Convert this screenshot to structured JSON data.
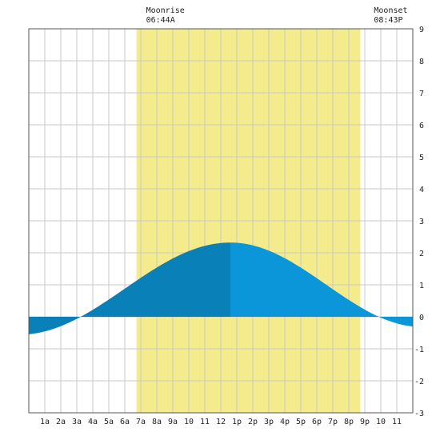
{
  "chart_data": {
    "type": "area",
    "title": "",
    "xlabel": "",
    "ylabel": "",
    "x_range_hours": [
      0,
      24
    ],
    "ylim": [
      -3,
      9
    ],
    "y_ticks": [
      -3,
      -2,
      -1,
      0,
      1,
      2,
      3,
      4,
      5,
      6,
      7,
      8,
      9
    ],
    "x_tick_labels": [
      "1a",
      "2a",
      "3a",
      "4a",
      "5a",
      "6a",
      "7a",
      "8a",
      "9a",
      "10",
      "11",
      "12",
      "1p",
      "2p",
      "3p",
      "4p",
      "5p",
      "6p",
      "7p",
      "8p",
      "9p",
      "10",
      "11"
    ],
    "grid": true,
    "moon": {
      "rise_label": "Moonrise",
      "rise_time": "06:44A",
      "rise_hour": 6.73,
      "set_label": "Moonset",
      "set_time": "08:43P",
      "set_hour": 20.72
    },
    "tide_extremes": [
      {
        "hour": -0.6,
        "height": -0.56
      },
      {
        "hour": 12.6,
        "height": 2.32
      },
      {
        "hour": 24.6,
        "height": -0.32
      }
    ],
    "colors": {
      "moon_band": "#f3eb8c",
      "tide_rising": "#0a80b8",
      "tide_falling": "#0a96d8",
      "grid": "#c8c8c8",
      "border": "#555555"
    }
  }
}
